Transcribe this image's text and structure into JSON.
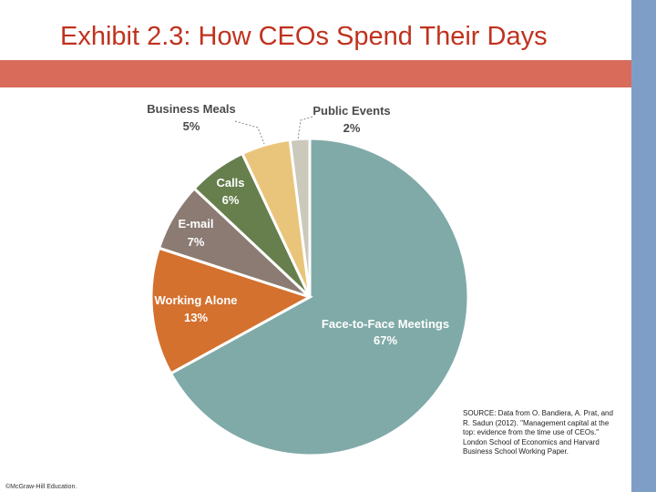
{
  "slide": {
    "title": "Exhibit 2.3: How CEOs Spend Their Days",
    "source": "SOURCE: Data from O. Bandiera, A. Prat, and R. Sadun (2012). \"Management capital at the top: evidence from the time use of CEOs.\" London School of Economics and Harvard Business School Working Paper.",
    "copyright": "©McGraw-Hill Education.",
    "colors": {
      "title": "#c0321e",
      "band": "#d86b5a",
      "side_bar": "#7f9ec7"
    }
  },
  "chart_data": {
    "type": "pie",
    "title": "",
    "start": "top, clockwise",
    "slices": [
      {
        "label": "Face-to-Face Meetings",
        "value": 67,
        "display": "67%",
        "color": "#80aaa8",
        "label_color": "#ffffff"
      },
      {
        "label": "Working Alone",
        "value": 13,
        "display": "13%",
        "color": "#d4712e",
        "label_color": "#ffffff"
      },
      {
        "label": "E-mail",
        "value": 7,
        "display": "7%",
        "color": "#8b7b73",
        "label_color": "#ffffff"
      },
      {
        "label": "Calls",
        "value": 6,
        "display": "6%",
        "color": "#667f4c",
        "label_color": "#ffffff"
      },
      {
        "label": "Business Meals",
        "value": 5,
        "display": "5%",
        "color": "#e9c57c",
        "label_color": "#4a4a4a"
      },
      {
        "label": "Public Events",
        "value": 2,
        "display": "2%",
        "color": "#cbc9bc",
        "label_color": "#4a4a4a"
      }
    ]
  }
}
